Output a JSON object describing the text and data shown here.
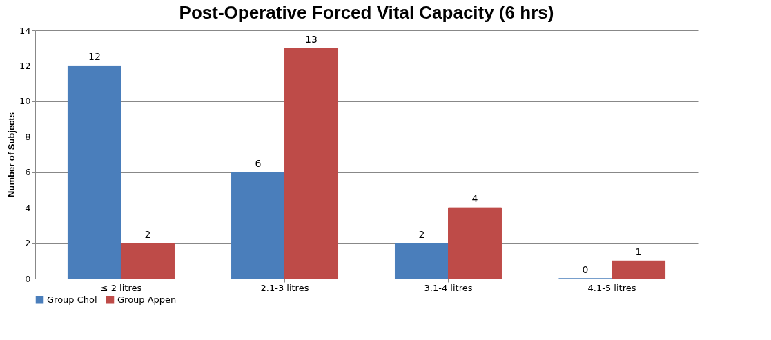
{
  "chart_data": {
    "type": "bar",
    "title": "Post-Operative Forced Vital Capacity (6 hrs)",
    "ylabel": "Number of Subjects",
    "categories": [
      "≤ 2 litres",
      "2.1-3 litres",
      "3.1-4 litres",
      "4.1-5 litres"
    ],
    "series": [
      {
        "name": "Group Chol",
        "color": "#4a7ebb",
        "values": [
          12,
          6,
          2,
          0
        ]
      },
      {
        "name": "Group Appen",
        "color": "#be4b48",
        "values": [
          2,
          13,
          4,
          1
        ]
      }
    ],
    "ylim": [
      0,
      14
    ],
    "yticks": [
      0,
      2,
      4,
      6,
      8,
      10,
      12,
      14
    ],
    "grid": "y",
    "legend": "bottom",
    "data_labels": true
  }
}
